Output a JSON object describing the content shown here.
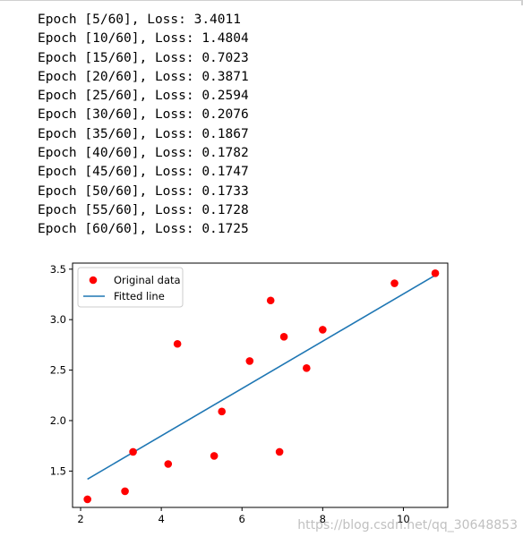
{
  "log": {
    "lines": [
      "Epoch [5/60], Loss: 3.4011",
      "Epoch [10/60], Loss: 1.4804",
      "Epoch [15/60], Loss: 0.7023",
      "Epoch [20/60], Loss: 0.3871",
      "Epoch [25/60], Loss: 0.2594",
      "Epoch [30/60], Loss: 0.2076",
      "Epoch [35/60], Loss: 0.1867",
      "Epoch [40/60], Loss: 0.1782",
      "Epoch [45/60], Loss: 0.1747",
      "Epoch [50/60], Loss: 0.1733",
      "Epoch [55/60], Loss: 0.1728",
      "Epoch [60/60], Loss: 0.1725"
    ]
  },
  "chart_data": {
    "type": "scatter",
    "xlim": [
      1.8,
      11.1
    ],
    "ylim": [
      1.14,
      3.56
    ],
    "xticks": [
      2,
      4,
      6,
      8,
      10
    ],
    "yticks": [
      1.5,
      2.0,
      2.5,
      3.0,
      3.5
    ],
    "xtick_labels": [
      "2",
      "4",
      "6",
      "8",
      "10"
    ],
    "ytick_labels": [
      "1.5",
      "2.0",
      "2.5",
      "3.0",
      "3.5"
    ],
    "grid": false,
    "legend_position": "top-left",
    "series": [
      {
        "name": "Original data",
        "kind": "scatter",
        "color": "#ff0000",
        "points": [
          [
            2.17,
            1.22
          ],
          [
            3.1,
            1.3
          ],
          [
            3.3,
            1.69
          ],
          [
            4.17,
            1.57
          ],
          [
            4.4,
            2.76
          ],
          [
            5.31,
            1.65
          ],
          [
            5.5,
            2.09
          ],
          [
            6.19,
            2.59
          ],
          [
            6.71,
            3.19
          ],
          [
            6.93,
            1.69
          ],
          [
            7.04,
            2.83
          ],
          [
            7.6,
            2.52
          ],
          [
            8.0,
            2.9
          ],
          [
            9.78,
            3.36
          ],
          [
            10.79,
            3.46
          ]
        ]
      },
      {
        "name": "Fitted line",
        "kind": "line",
        "color": "#1f77b4",
        "points": [
          [
            2.17,
            1.42
          ],
          [
            10.79,
            3.44
          ]
        ]
      }
    ]
  },
  "watermark": "https://blog.csdn.net/qq_30648853"
}
